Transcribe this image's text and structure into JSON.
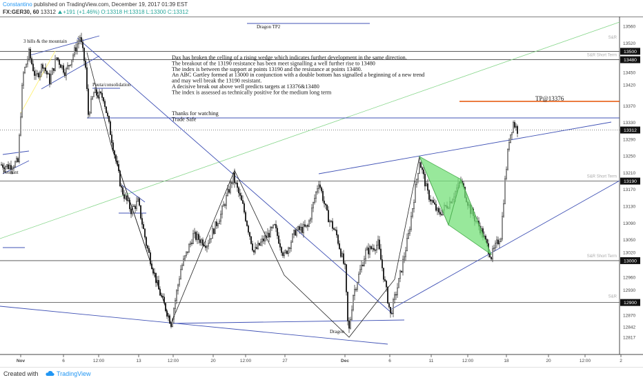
{
  "header": {
    "author": "Constantino",
    "published": "published on TradingView.com, December 19, 2017 01:39 EST",
    "symbol": "FX:GER30, 60",
    "last": "13312",
    "change": "+191 (+1.46%)",
    "ohlc": "O:13318 H:13318 L:13300 C:13312"
  },
  "footer": {
    "created_with": "Created with",
    "brand": "TradingView"
  },
  "chart_data": {
    "type": "candlestick",
    "title": "",
    "ylim": [
      12790,
      13580
    ],
    "y_ticks": [
      12817,
      12842,
      12870,
      12930,
      12960,
      13020,
      13050,
      13090,
      13130,
      13170,
      13210,
      13250,
      13290,
      13330,
      13370,
      13420,
      13450,
      13520,
      13560
    ],
    "x_ticks": [
      "Nov",
      "6",
      "12:00",
      "13",
      "12:00",
      "20",
      "12:00",
      "27",
      "Dec",
      "6",
      "11",
      "12:00",
      "18",
      "20",
      "12:00",
      "2"
    ],
    "price_flags": [
      {
        "label": "13500",
        "value": 13500
      },
      {
        "label": "13480",
        "value": 13480
      },
      {
        "label": "13312",
        "value": 13312
      },
      {
        "label": "13190",
        "value": 13190
      },
      {
        "label": "13000",
        "value": 13000
      },
      {
        "label": "12900",
        "value": 12900
      }
    ],
    "level_tags": [
      "S&R",
      "S&R Short Term",
      "S&R Short Term",
      "S&R Short Term",
      "S&R"
    ],
    "annotations": {
      "commentary": [
        "Dax has broken the celling of a rising wedge  which indicates further development in the same direction.",
        "The breakout of the 13190 resistance has been meet signalling a well further rise to 13480",
        "The index is between the support at points 13190 and the resistance at points 13480.",
        "An ABC Gartley formed at 13000 in conjunction with a double bottom has signalled a beginning of a new trend",
        "and may well break the 13190 resistant.",
        "A decisive break out above well predicts targets at 13376&13480",
        "The index is assessed as technically positive for the medium long term"
      ],
      "thanks": [
        "Thanks for watching",
        "Trade Safe"
      ],
      "tp_label": "TP@13376",
      "dragon_tp2": "Dragon TP2",
      "dragon": "Dragon",
      "three_hills": "3 hills & the mountain",
      "pauta": "Pauta/consolidation",
      "pennant": "Pennant"
    },
    "path_anchors": [
      [
        0,
        13230
      ],
      [
        12,
        13225
      ],
      [
        26,
        13235
      ],
      [
        33,
        13440
      ],
      [
        42,
        13495
      ],
      [
        52,
        13435
      ],
      [
        62,
        13470
      ],
      [
        72,
        13430
      ],
      [
        82,
        13485
      ],
      [
        95,
        13450
      ],
      [
        108,
        13500
      ],
      [
        116,
        13535
      ],
      [
        124,
        13460
      ],
      [
        128,
        13350
      ],
      [
        136,
        13400
      ],
      [
        150,
        13390
      ],
      [
        162,
        13290
      ],
      [
        176,
        13170
      ],
      [
        190,
        13120
      ],
      [
        200,
        13140
      ],
      [
        212,
        13040
      ],
      [
        230,
        12930
      ],
      [
        248,
        12850
      ],
      [
        262,
        12980
      ],
      [
        280,
        13060
      ],
      [
        300,
        13040
      ],
      [
        320,
        13110
      ],
      [
        338,
        13200
      ],
      [
        352,
        13130
      ],
      [
        368,
        13020
      ],
      [
        382,
        13050
      ],
      [
        398,
        13080
      ],
      [
        412,
        13010
      ],
      [
        428,
        13070
      ],
      [
        446,
        13080
      ],
      [
        462,
        13190
      ],
      [
        474,
        13110
      ],
      [
        488,
        13060
      ],
      [
        500,
        12980
      ],
      [
        505,
        12820
      ],
      [
        512,
        12920
      ],
      [
        530,
        13020
      ],
      [
        548,
        13040
      ],
      [
        566,
        12870
      ],
      [
        578,
        12950
      ],
      [
        592,
        13060
      ],
      [
        608,
        13240
      ],
      [
        620,
        13160
      ],
      [
        636,
        13110
      ],
      [
        652,
        13140
      ],
      [
        668,
        13190
      ],
      [
        682,
        13120
      ],
      [
        698,
        13070
      ],
      [
        712,
        13010
      ],
      [
        720,
        13040
      ],
      [
        726,
        13060
      ],
      [
        732,
        13190
      ],
      [
        738,
        13290
      ],
      [
        744,
        13330
      ],
      [
        750,
        13312
      ]
    ]
  }
}
